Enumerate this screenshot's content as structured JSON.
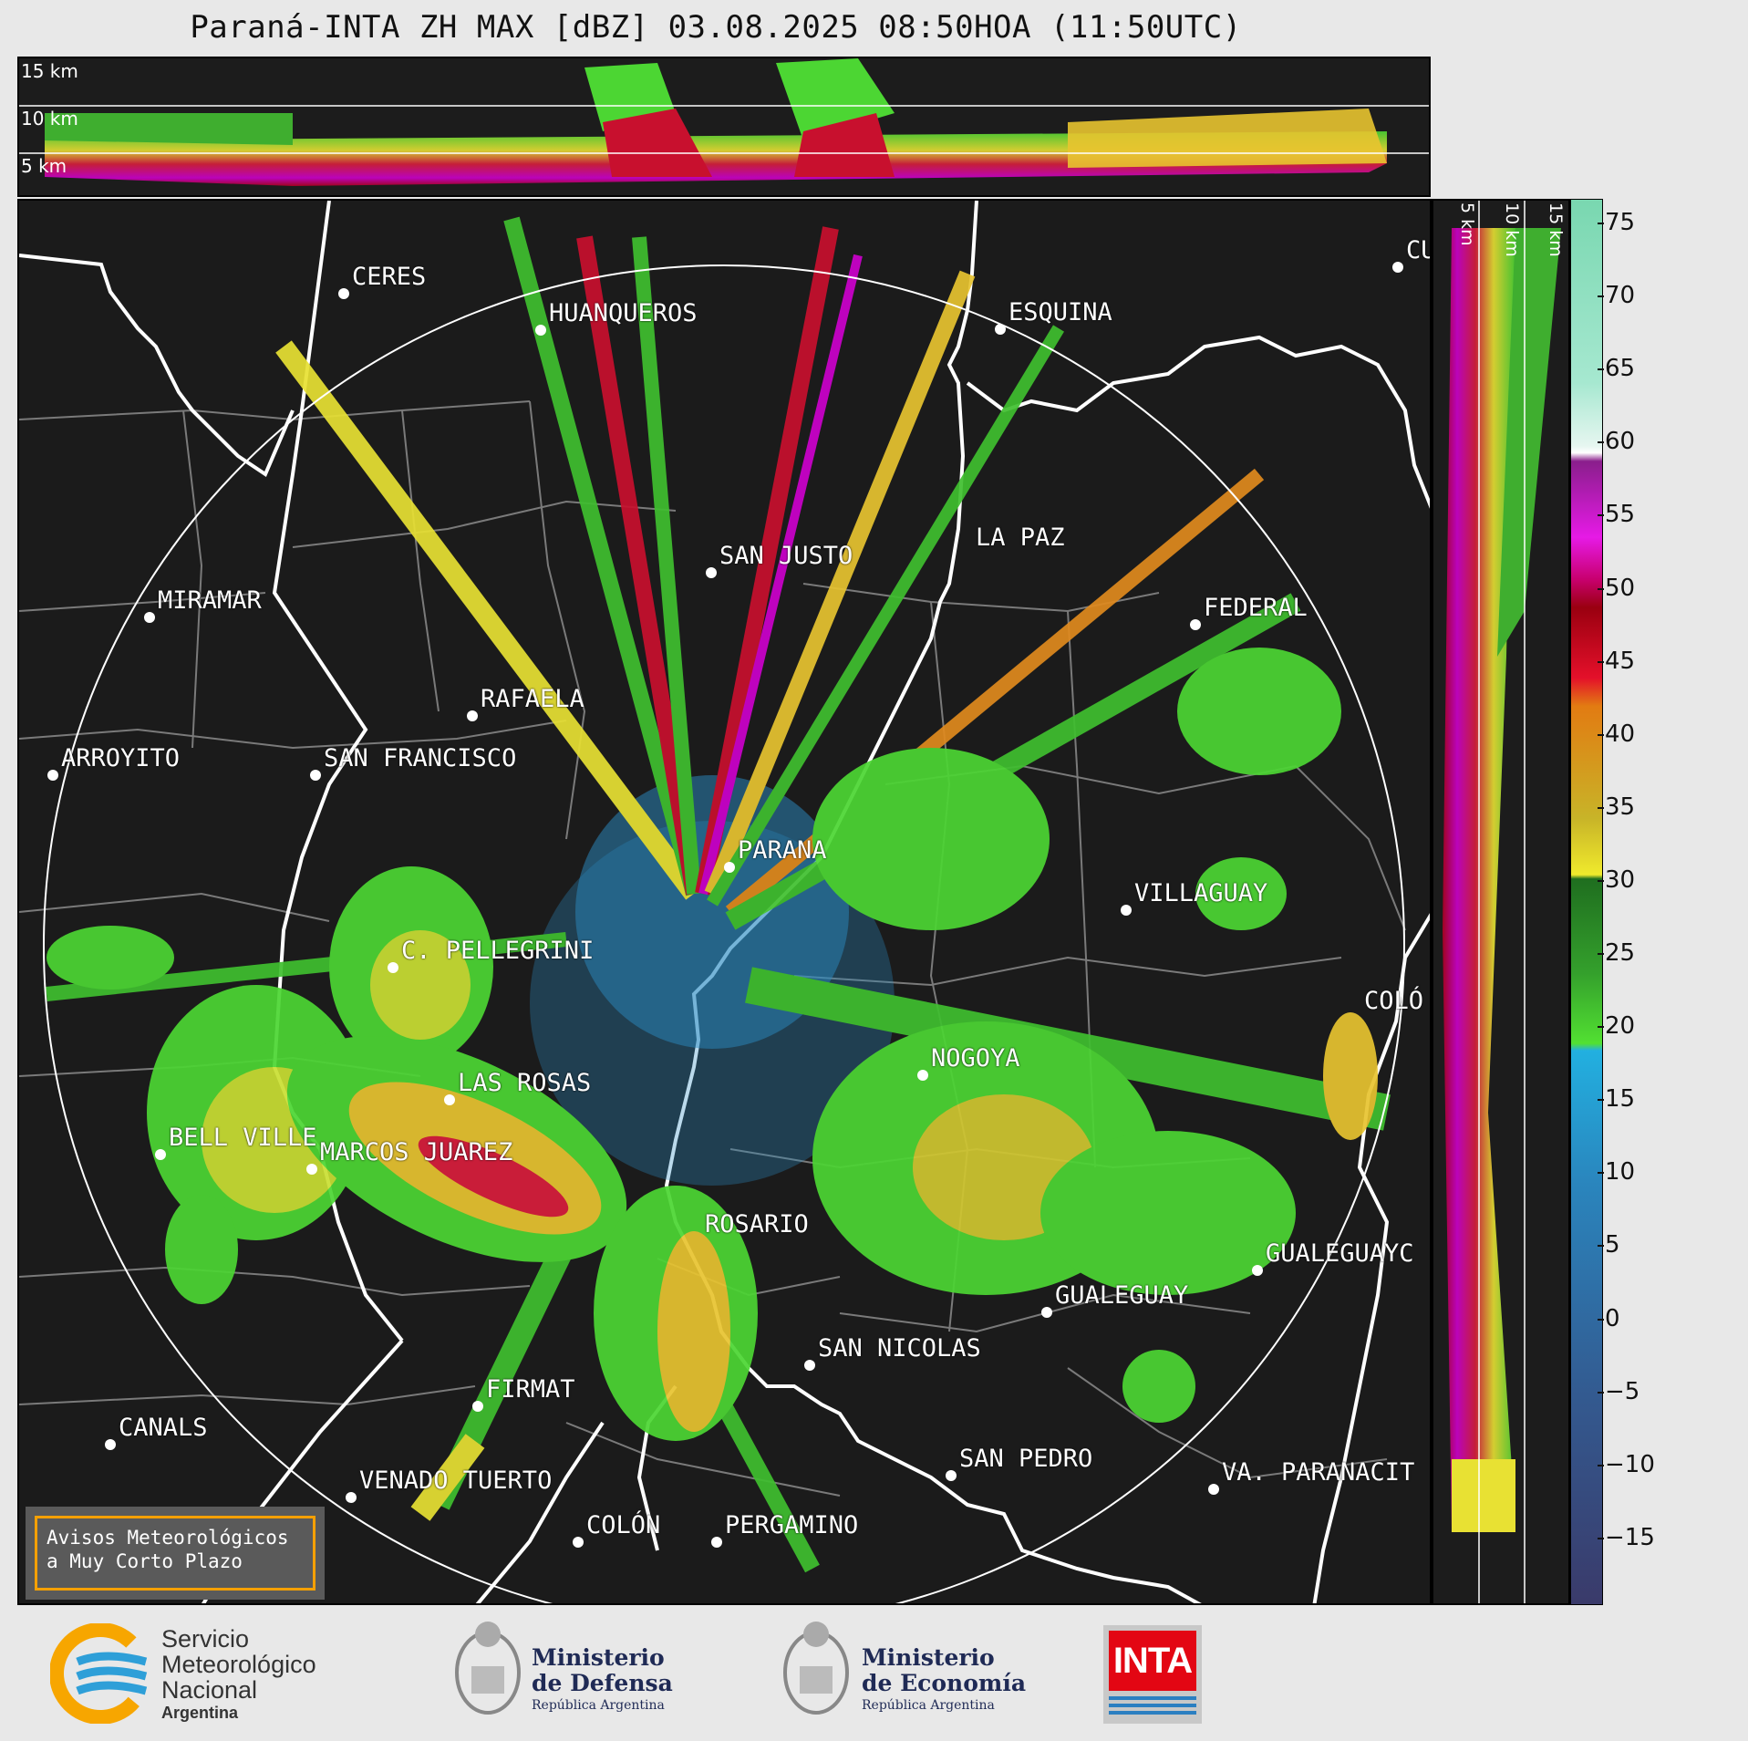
{
  "title": "Paraná-INTA ZH MAX [dBZ] 03.08.2025 08:50HOA (11:50UTC)",
  "top_panel": {
    "altitude_labels": [
      "15 km",
      "10 km",
      "5 km"
    ]
  },
  "side_panel": {
    "altitude_labels": [
      "5 km",
      "10 km",
      "15 km"
    ]
  },
  "colorbar": {
    "ticks": [
      "75",
      "70",
      "65",
      "60",
      "55",
      "50",
      "45",
      "40",
      "35",
      "30",
      "25",
      "20",
      "15",
      "10",
      "5",
      "0",
      "−5",
      "−10",
      "−15"
    ]
  },
  "cities": [
    {
      "name": "CERES"
    },
    {
      "name": "HUANQUEROS"
    },
    {
      "name": "ESQUINA"
    },
    {
      "name": "CU"
    },
    {
      "name": "LA PAZ"
    },
    {
      "name": "SAN JUSTO"
    },
    {
      "name": "MIRAMAR"
    },
    {
      "name": "FEDERAL"
    },
    {
      "name": "RAFAELA"
    },
    {
      "name": "ARROYITO"
    },
    {
      "name": "SAN FRANCISCO"
    },
    {
      "name": "PARANA"
    },
    {
      "name": "VILLAGUAY"
    },
    {
      "name": "C. PELLEGRINI"
    },
    {
      "name": "COLÓ"
    },
    {
      "name": "NOGOYA"
    },
    {
      "name": "LAS ROSAS"
    },
    {
      "name": "BELL VILLE"
    },
    {
      "name": "MARCOS JUAREZ"
    },
    {
      "name": "ROSARIO"
    },
    {
      "name": "GUALEGUAYC"
    },
    {
      "name": "GUALEGUAY"
    },
    {
      "name": "SAN NICOLAS"
    },
    {
      "name": "FIRMAT"
    },
    {
      "name": "CANALS"
    },
    {
      "name": "SAN PEDRO"
    },
    {
      "name": "VENADO TUERTO"
    },
    {
      "name": "VA. PARANACIT"
    },
    {
      "name": "COLÓN"
    },
    {
      "name": "PERGAMINO"
    }
  ],
  "notice": {
    "line1": "Avisos Meteorológicos",
    "line2": "a Muy Corto Plazo"
  },
  "logos": {
    "smn": {
      "line1": "Servicio",
      "line2": "Meteorológico",
      "line3": "Nacional",
      "line4": "Argentina"
    },
    "defensa": {
      "line1": "Ministerio",
      "line2": "de Defensa",
      "line3": "República Argentina"
    },
    "economia": {
      "line1": "Ministerio",
      "line2": "de Economía",
      "line3": "República Argentina"
    },
    "inta": {
      "text": "INTA"
    }
  },
  "colors": {
    "background": "#1b1b1b",
    "range_ring": "#ffffff",
    "provinces": "#ffffff",
    "departments": "#808080",
    "accent_notice": "#f5a000",
    "smn_orange": "#f7a600",
    "smn_blue": "#2e9fd8",
    "inta_red": "#e30613"
  }
}
